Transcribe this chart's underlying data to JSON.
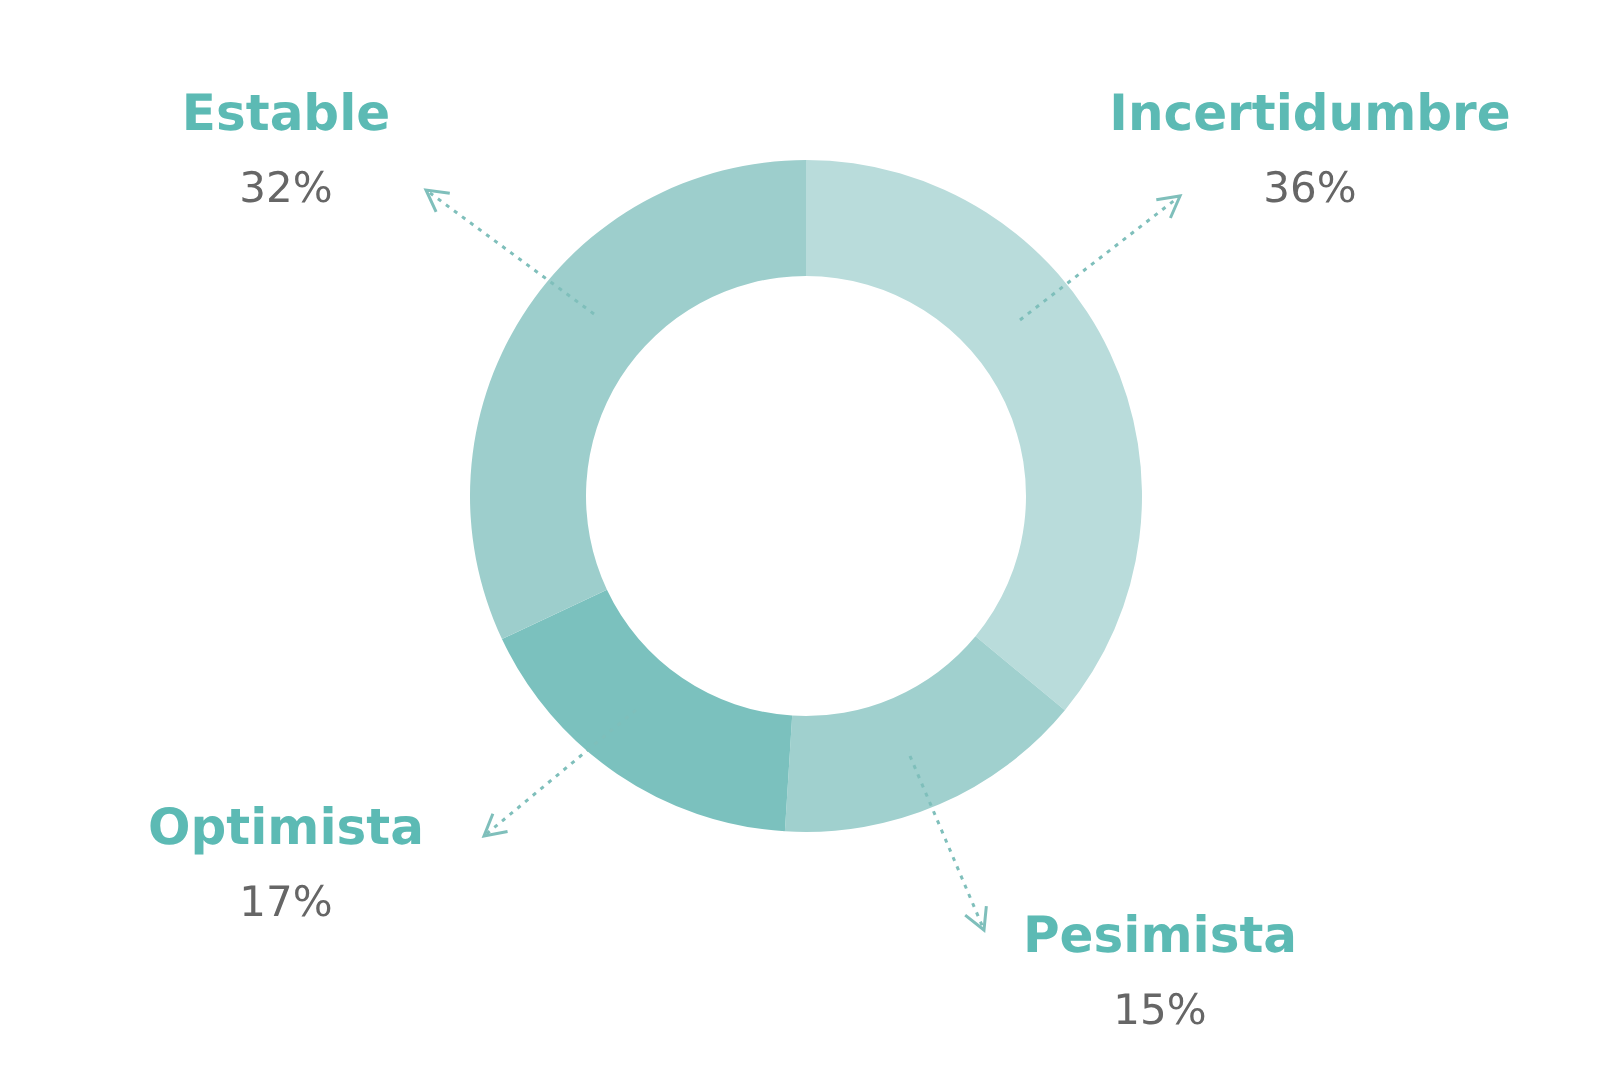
{
  "chart_data": {
    "type": "donut",
    "categories": [
      "Incertidumbre",
      "Pesimista",
      "Optimista",
      "Estable"
    ],
    "values": [
      36,
      15,
      17,
      32
    ],
    "colors": [
      "#b9dcdb",
      "#a0d0ce",
      "#7bc1be",
      "#9dcecc"
    ],
    "value_labels": [
      "36%",
      "15%",
      "17%",
      "32%"
    ]
  }
}
